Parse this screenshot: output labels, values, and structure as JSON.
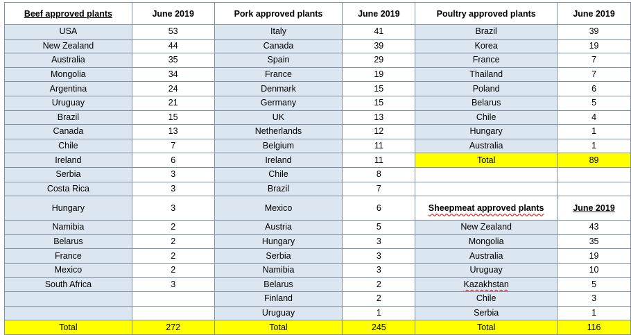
{
  "headers": {
    "beef": "Beef approved plants",
    "pork": "Pork approved plants",
    "poultry": "Poultry approved plants",
    "date": "June 2019"
  },
  "beef": [
    [
      "USA",
      "53"
    ],
    [
      "New Zealand",
      "44"
    ],
    [
      "Australia",
      "35"
    ],
    [
      "Mongolia",
      "34"
    ],
    [
      "Argentina",
      "24"
    ],
    [
      "Uruguay",
      "21"
    ],
    [
      "Brazil",
      "15"
    ],
    [
      "Canada",
      "13"
    ],
    [
      "Chile",
      "7"
    ],
    [
      "Ireland",
      "6"
    ],
    [
      "Serbia",
      "3"
    ],
    [
      "Costa Rica",
      "3"
    ],
    [
      "Hungary",
      "3"
    ],
    [
      "Namibia",
      "2"
    ],
    [
      "Belarus",
      "2"
    ],
    [
      "France",
      "2"
    ],
    [
      "Mexico",
      "2"
    ],
    [
      "South Africa",
      "3"
    ],
    [
      "",
      ""
    ],
    [
      "",
      ""
    ]
  ],
  "pork": [
    [
      "Italy",
      "41"
    ],
    [
      "Canada",
      "39"
    ],
    [
      "Spain",
      "29"
    ],
    [
      "France",
      "19"
    ],
    [
      "Denmark",
      "15"
    ],
    [
      "Germany",
      "15"
    ],
    [
      "UK",
      "13"
    ],
    [
      "Netherlands",
      "12"
    ],
    [
      "Belgium",
      "11"
    ],
    [
      "Ireland",
      "11"
    ],
    [
      "Chile",
      "8"
    ],
    [
      "Brazil",
      "7"
    ],
    [
      "Mexico",
      "6"
    ],
    [
      "Austria",
      "5"
    ],
    [
      "Hungary",
      "3"
    ],
    [
      "Serbia",
      "3"
    ],
    [
      "Namibia",
      "3"
    ],
    [
      "Belarus",
      "2"
    ],
    [
      "Finland",
      "2"
    ],
    [
      "Uruguay",
      "1"
    ]
  ],
  "poultry": [
    [
      "Brazil",
      "39"
    ],
    [
      "Korea",
      "19"
    ],
    [
      "France",
      "7"
    ],
    [
      "Thailand",
      "7"
    ],
    [
      "Poland",
      "6"
    ],
    [
      "Belarus",
      "5"
    ],
    [
      "Chile",
      "4"
    ],
    [
      "Hungary",
      "1"
    ],
    [
      "Australia",
      "1"
    ]
  ],
  "poultry_total": [
    "Total",
    "89"
  ],
  "sheepmeat": {
    "header": "Sheepmeat approved plants",
    "date": "June 2019",
    "rows": [
      [
        "New Zealand",
        "43"
      ],
      [
        "Mongolia",
        "35"
      ],
      [
        "Australia",
        "19"
      ],
      [
        "Uruguay",
        "10"
      ],
      [
        "Kazakhstan",
        "5"
      ],
      [
        "Chile",
        "3"
      ],
      [
        "Serbia",
        "1"
      ]
    ]
  },
  "totals": {
    "beef": [
      "Total",
      "272"
    ],
    "pork": [
      "Total",
      "245"
    ],
    "sheep": [
      "Total",
      "116"
    ]
  }
}
